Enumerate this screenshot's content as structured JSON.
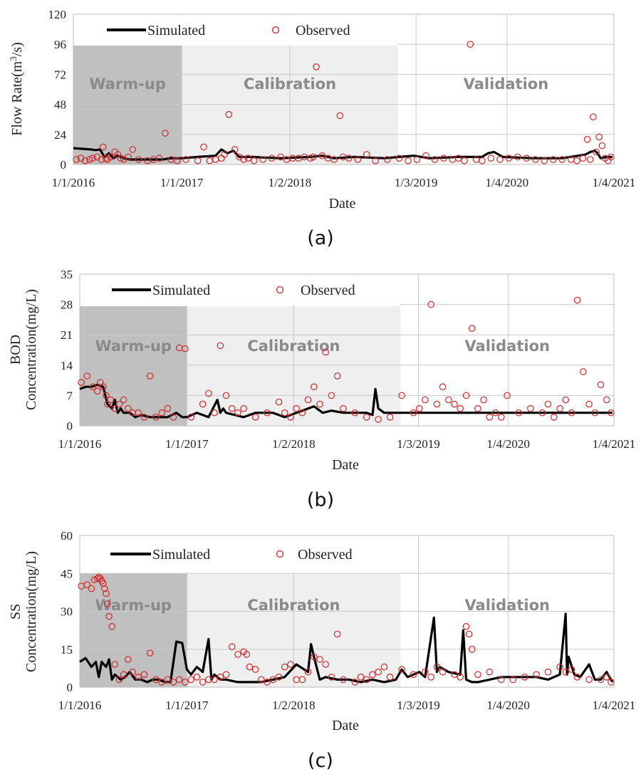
{
  "figure": {
    "legend": {
      "simulated": "Simulated",
      "observed": "Observed"
    },
    "periods": [
      "Warm-up",
      "Calibration",
      "Validation"
    ],
    "colors": {
      "simulated": "#000000",
      "observed": "#d62728",
      "warmup": "#c0c0c0",
      "calibration": "#efefef",
      "grid": "#c8c8c8"
    }
  },
  "chart_data": [
    {
      "type": "line",
      "panel": "(a)",
      "title": "",
      "ylabel": "Flow Rate(m³/s)",
      "ylabel_parts": [
        "Flow Rate(m",
        "3",
        "/s)"
      ],
      "xlabel": "Date",
      "ylim": [
        0,
        120
      ],
      "yticks": [
        0,
        24,
        48,
        72,
        96,
        120
      ],
      "xlim": [
        0,
        1825
      ],
      "xticks": [
        0,
        366,
        731,
        1157,
        1464,
        1825
      ],
      "xtick_labels": [
        "1/1/2016",
        "1/1/2017",
        "1/2/2018",
        "1/3/2019",
        "1/4/2020",
        "1/4/2021"
      ],
      "period_bounds": [
        366,
        1096
      ],
      "series": [
        {
          "name": "Simulated",
          "x": [
            0,
            30,
            60,
            75,
            90,
            105,
            120,
            135,
            150,
            170,
            190,
            210,
            240,
            270,
            300,
            330,
            366,
            420,
            480,
            500,
            520,
            540,
            560,
            600,
            700,
            800,
            840,
            880,
            950,
            1050,
            1100,
            1150,
            1200,
            1300,
            1380,
            1400,
            1420,
            1450,
            1550,
            1650,
            1730,
            1745,
            1760,
            1770,
            1780,
            1800,
            1820
          ],
          "y": [
            13,
            12.5,
            12,
            11.5,
            12,
            6,
            9,
            5,
            7,
            5,
            4,
            4,
            4,
            4,
            4,
            5,
            5,
            6,
            7,
            12,
            9,
            11,
            6,
            6,
            5,
            6,
            7,
            5,
            6,
            5,
            6,
            7,
            5,
            6,
            6,
            9,
            10,
            6,
            5,
            5,
            8,
            10,
            11,
            9,
            5,
            6,
            6
          ]
        },
        {
          "name": "Observed",
          "x": [
            10,
            25,
            40,
            55,
            65,
            80,
            95,
            100,
            110,
            115,
            125,
            140,
            150,
            160,
            170,
            185,
            200,
            220,
            250,
            270,
            290,
            310,
            330,
            350,
            380,
            420,
            440,
            460,
            480,
            500,
            510,
            525,
            545,
            560,
            575,
            590,
            610,
            640,
            670,
            700,
            720,
            740,
            760,
            780,
            800,
            810,
            820,
            840,
            860,
            880,
            900,
            910,
            930,
            960,
            990,
            1020,
            1060,
            1100,
            1130,
            1160,
            1190,
            1220,
            1250,
            1280,
            1300,
            1320,
            1340,
            1360,
            1380,
            1410,
            1440,
            1470,
            1500,
            1530,
            1560,
            1590,
            1620,
            1650,
            1680,
            1700,
            1720,
            1735,
            1745,
            1755,
            1765,
            1775,
            1785,
            1795,
            1805,
            1815
          ],
          "y": [
            4,
            5,
            3,
            4,
            5,
            6,
            4,
            14,
            5,
            4,
            6,
            10,
            8,
            5,
            4,
            6,
            12,
            4,
            3,
            4,
            5,
            25,
            4,
            3,
            4,
            3,
            14,
            3,
            4,
            5,
            8,
            40,
            12,
            6,
            4,
            5,
            3,
            4,
            5,
            6,
            4,
            5,
            5,
            6,
            5,
            6,
            78,
            7,
            5,
            4,
            39,
            6,
            5,
            4,
            8,
            3,
            4,
            5,
            3,
            4,
            7,
            4,
            5,
            4,
            5,
            3,
            96,
            4,
            3,
            5,
            4,
            5,
            6,
            5,
            4,
            3,
            4,
            4,
            4,
            3,
            5,
            20,
            4,
            38,
            10,
            22,
            15,
            5,
            3,
            6
          ]
        }
      ]
    },
    {
      "type": "line",
      "panel": "(b)",
      "title": "",
      "ylabel": "BOD Concentration(mg/L)",
      "ylabel_lines": [
        "BOD",
        "Concentration(mg/L)"
      ],
      "xlabel": "Date",
      "ylim": [
        0,
        35
      ],
      "yticks": [
        0,
        7,
        14,
        21,
        28,
        35
      ],
      "xlim": [
        0,
        1825
      ],
      "xticks": [
        0,
        366,
        731,
        1157,
        1464,
        1825
      ],
      "xtick_labels": [
        "1/1/2016",
        "1/1/2017",
        "1/2/2018",
        "1/3/2019",
        "1/4/2020",
        "1/4/2021"
      ],
      "period_bounds": [
        366,
        1096
      ],
      "series": [
        {
          "name": "Simulated",
          "x": [
            0,
            20,
            40,
            60,
            80,
            95,
            110,
            120,
            130,
            140,
            150,
            170,
            190,
            210,
            240,
            270,
            300,
            330,
            350,
            366,
            400,
            440,
            470,
            480,
            490,
            500,
            530,
            560,
            600,
            660,
            700,
            740,
            780,
            800,
            830,
            860,
            900,
            940,
            980,
            1000,
            1010,
            1020,
            1040,
            1100,
            1160,
            1200,
            1300,
            1400,
            1500,
            1600,
            1700,
            1730,
            1760,
            1780,
            1800,
            1820
          ],
          "y": [
            8.5,
            9,
            9,
            9.5,
            9,
            5,
            4,
            6,
            3,
            4,
            3,
            3,
            2,
            2.5,
            2,
            2,
            2,
            3,
            2,
            2,
            3,
            2,
            6,
            3,
            4,
            3,
            2.5,
            2,
            3,
            3,
            2,
            3,
            4,
            4.5,
            3,
            3.5,
            3,
            3,
            3,
            2.5,
            8.5,
            4,
            3,
            3,
            3,
            3,
            3,
            3,
            3,
            3,
            3,
            3,
            3,
            3,
            3,
            3
          ]
        },
        {
          "name": "Observed",
          "x": [
            5,
            25,
            45,
            60,
            70,
            80,
            90,
            95,
            105,
            120,
            135,
            150,
            165,
            180,
            200,
            220,
            240,
            260,
            280,
            300,
            320,
            340,
            360,
            380,
            420,
            440,
            460,
            480,
            500,
            520,
            540,
            560,
            600,
            640,
            680,
            700,
            720,
            740,
            760,
            780,
            800,
            820,
            840,
            860,
            880,
            900,
            940,
            980,
            1020,
            1060,
            1100,
            1140,
            1160,
            1180,
            1200,
            1220,
            1240,
            1260,
            1280,
            1300,
            1320,
            1340,
            1360,
            1380,
            1400,
            1420,
            1440,
            1460,
            1500,
            1540,
            1580,
            1600,
            1620,
            1640,
            1660,
            1680,
            1700,
            1720,
            1740,
            1760,
            1780,
            1800,
            1815
          ],
          "y": [
            10,
            11.5,
            9,
            8,
            10,
            9,
            7,
            5,
            6,
            4,
            5,
            6,
            4,
            3,
            3,
            2,
            11.5,
            2,
            3,
            4,
            2,
            18,
            17.8,
            2,
            5,
            7.5,
            3,
            18.5,
            7,
            4,
            3,
            4,
            2,
            3,
            5.5,
            3,
            2,
            4,
            3,
            6,
            9,
            5,
            17,
            7,
            11.5,
            4,
            3,
            2,
            1.5,
            2,
            7,
            3,
            4,
            6,
            28,
            5,
            9,
            6,
            5,
            4,
            7,
            22.5,
            4,
            6,
            2,
            3,
            2,
            7,
            3,
            4,
            3,
            5,
            2,
            4,
            6,
            3,
            29,
            12.5,
            5,
            3,
            9.5,
            6,
            3
          ]
        }
      ]
    },
    {
      "type": "line",
      "panel": "(c)",
      "title": "",
      "ylabel": "SS Concentration(mg/L)",
      "ylabel_lines": [
        "SS",
        "Concentration(mg/L)"
      ],
      "xlabel": "Date",
      "ylim": [
        0,
        60
      ],
      "yticks": [
        0,
        15,
        30,
        45,
        60
      ],
      "xlim": [
        0,
        1825
      ],
      "xticks": [
        0,
        366,
        731,
        1157,
        1464,
        1825
      ],
      "xtick_labels": [
        "1/1/2016",
        "1/1/2017",
        "1/2/2018",
        "1/3/2019",
        "1/4/2020",
        "1/4/2021"
      ],
      "period_bounds": [
        366,
        1096
      ],
      "series": [
        {
          "name": "Simulated",
          "x": [
            0,
            20,
            40,
            55,
            65,
            75,
            90,
            100,
            110,
            120,
            140,
            155,
            170,
            190,
            210,
            230,
            250,
            270,
            290,
            310,
            330,
            350,
            366,
            380,
            400,
            420,
            440,
            450,
            460,
            480,
            500,
            540,
            580,
            620,
            660,
            700,
            740,
            780,
            790,
            800,
            820,
            840,
            880,
            920,
            960,
            1000,
            1040,
            1080,
            1100,
            1120,
            1140,
            1160,
            1180,
            1210,
            1220,
            1230,
            1260,
            1300,
            1310,
            1320,
            1340,
            1360,
            1400,
            1440,
            1480,
            1520,
            1560,
            1600,
            1640,
            1660,
            1665,
            1670,
            1690,
            1710,
            1740,
            1760,
            1780,
            1800,
            1820
          ],
          "y": [
            10,
            11.5,
            8,
            10,
            4,
            10,
            8,
            11,
            3,
            5,
            3,
            4,
            6,
            3,
            3,
            2,
            3,
            3,
            2,
            2,
            18,
            17.5,
            7,
            5,
            8,
            6,
            19,
            3,
            5,
            3,
            3,
            2,
            2,
            2,
            3,
            4,
            9,
            6,
            17,
            12,
            3,
            4,
            3,
            3,
            2,
            3,
            2,
            3,
            7,
            4,
            5,
            6,
            4,
            27.5,
            6,
            8,
            6,
            5,
            22.5,
            3,
            2,
            2,
            3,
            4,
            4,
            4,
            4,
            3,
            5,
            29,
            5,
            12,
            5,
            4,
            9,
            3,
            3,
            6,
            2
          ]
        },
        {
          "name": "Observed",
          "x": [
            5,
            25,
            40,
            50,
            60,
            65,
            70,
            75,
            80,
            85,
            90,
            95,
            100,
            110,
            120,
            135,
            150,
            165,
            180,
            200,
            220,
            240,
            260,
            280,
            300,
            320,
            340,
            360,
            380,
            400,
            420,
            440,
            460,
            480,
            500,
            520,
            540,
            560,
            570,
            580,
            600,
            620,
            640,
            660,
            680,
            700,
            720,
            740,
            760,
            780,
            800,
            820,
            840,
            860,
            880,
            900,
            940,
            960,
            980,
            1000,
            1020,
            1040,
            1060,
            1100,
            1140,
            1180,
            1200,
            1220,
            1240,
            1280,
            1300,
            1320,
            1330,
            1340,
            1360,
            1400,
            1440,
            1480,
            1520,
            1560,
            1600,
            1640,
            1660,
            1680,
            1700,
            1740,
            1780,
            1800,
            1815
          ],
          "y": [
            40,
            40.5,
            39,
            42.5,
            43,
            43.5,
            43,
            42,
            41,
            39,
            37,
            33,
            28,
            24,
            9,
            3,
            5,
            11,
            6,
            4,
            5,
            13.5,
            3,
            2,
            3,
            2,
            3,
            2,
            3,
            4,
            2,
            3,
            3,
            4,
            5,
            16,
            13,
            14,
            13,
            8,
            7,
            3,
            2,
            3,
            4,
            8,
            9,
            3,
            3,
            6,
            12,
            11,
            9,
            4,
            21,
            3,
            2,
            4,
            3,
            5,
            6,
            8,
            4,
            7,
            5,
            6,
            4,
            8,
            6,
            5,
            4,
            24,
            21,
            15,
            5,
            6,
            3,
            3,
            4,
            5,
            6,
            8,
            6,
            7,
            4,
            3,
            3,
            4,
            2
          ]
        }
      ]
    }
  ]
}
